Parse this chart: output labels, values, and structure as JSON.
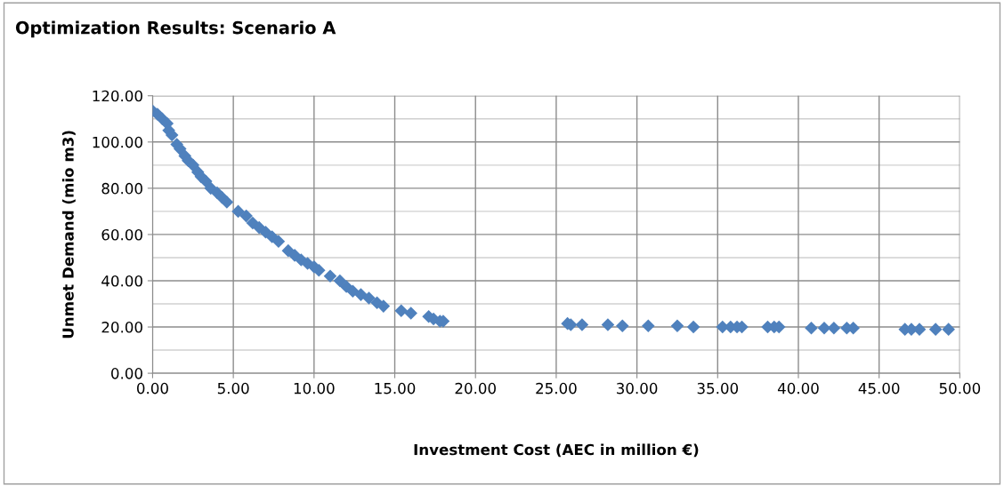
{
  "chart_data": {
    "type": "scatter",
    "title": "Optimization Results: Scenario A",
    "xlabel": "Investment Cost (AEC in million €)",
    "ylabel": "Unmet Demand (mio m3)",
    "x": [
      0,
      0.3,
      0.6,
      0.9,
      1.0,
      1.2,
      1.5,
      1.7,
      2.0,
      2.2,
      2.5,
      2.8,
      3.0,
      3.3,
      3.6,
      4.0,
      4.3,
      4.6,
      5.3,
      5.8,
      6.2,
      6.6,
      7.0,
      7.4,
      7.8,
      8.4,
      8.8,
      9.2,
      9.6,
      10.0,
      10.3,
      11.0,
      11.6,
      12.0,
      12.4,
      12.9,
      13.4,
      13.9,
      14.3,
      15.4,
      16.0,
      17.1,
      17.4,
      17.8,
      18.0,
      25.7,
      25.9,
      26.6,
      28.2,
      29.1,
      30.7,
      32.5,
      33.5,
      35.3,
      35.8,
      36.2,
      36.5,
      38.1,
      38.5,
      38.8,
      40.8,
      41.6,
      42.2,
      43.0,
      43.4,
      46.6,
      47.0,
      47.5,
      48.5,
      49.3
    ],
    "series": [
      {
        "color": "#4f81bd",
        "values": [
          113.5,
          112,
          110,
          108,
          105,
          103,
          99,
          97,
          94,
          92,
          90,
          87,
          85,
          83,
          80,
          78,
          76,
          74,
          70,
          68,
          65,
          63,
          61,
          59,
          57,
          53,
          51,
          49,
          47.5,
          46,
          44.5,
          42,
          40,
          37.5,
          35.5,
          34,
          32.5,
          30.5,
          29,
          27,
          26,
          24.5,
          23.5,
          22.5,
          22.5,
          21.5,
          21,
          21,
          21,
          20.5,
          20.5,
          20.5,
          20,
          20,
          20,
          20,
          20,
          20,
          20,
          20,
          19.5,
          19.5,
          19.5,
          19.5,
          19.5,
          19,
          19,
          19,
          19,
          19
        ]
      }
    ],
    "marker": "diamond",
    "grid": true,
    "legend": false,
    "xlim": [
      0,
      50
    ],
    "ylim": [
      0,
      120
    ],
    "xticks": [
      {
        "value": 0,
        "label": "0.00"
      },
      {
        "value": 5,
        "label": "5.00"
      },
      {
        "value": 10,
        "label": "10.00"
      },
      {
        "value": 15,
        "label": "15.00"
      },
      {
        "value": 20,
        "label": "20.00"
      },
      {
        "value": 25,
        "label": "25.00"
      },
      {
        "value": 30,
        "label": "30.00"
      },
      {
        "value": 35,
        "label": "35.00"
      },
      {
        "value": 40,
        "label": "40.00"
      },
      {
        "value": 45,
        "label": "45.00"
      },
      {
        "value": 50,
        "label": "50.00"
      }
    ],
    "yticks": [
      {
        "value": 0,
        "label": "0.00"
      },
      {
        "value": 20,
        "label": "20.00"
      },
      {
        "value": 40,
        "label": "40.00"
      },
      {
        "value": 60,
        "label": "60.00"
      },
      {
        "value": 80,
        "label": "80.00"
      },
      {
        "value": 100,
        "label": "100.00"
      },
      {
        "value": 120,
        "label": "120.00"
      }
    ]
  }
}
